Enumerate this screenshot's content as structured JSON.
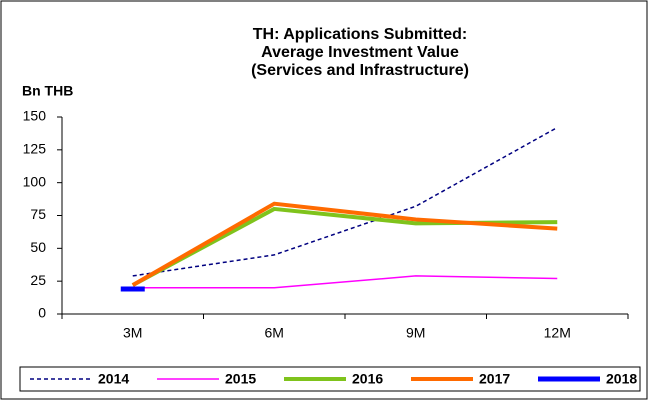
{
  "chart_data": {
    "type": "line",
    "title": [
      "TH: Applications Submitted:",
      "Average Investment Value",
      "(Services and Infrastructure)"
    ],
    "y_label": "Bn THB",
    "categories": [
      "3M",
      "6M",
      "9M",
      "12M"
    ],
    "series": [
      {
        "name": "2014",
        "color": "#000080",
        "width": 1.5,
        "dashed": true,
        "values": [
          29,
          45,
          82,
          142
        ]
      },
      {
        "name": "2015",
        "color": "#ff00ff",
        "width": 1.5,
        "dashed": false,
        "values": [
          20,
          20,
          29,
          27
        ]
      },
      {
        "name": "2016",
        "color": "#7fc31c",
        "width": 4,
        "dashed": false,
        "values": [
          22,
          80,
          69,
          70
        ]
      },
      {
        "name": "2017",
        "color": "#ff6a00",
        "width": 4,
        "dashed": false,
        "values": [
          22,
          84,
          72,
          65
        ]
      },
      {
        "name": "2018",
        "color": "#0000ff",
        "width": 5,
        "dashed": false,
        "values": [
          19,
          null,
          null,
          null
        ]
      }
    ],
    "ylim": [
      0,
      150
    ],
    "yticks": [
      0,
      25,
      50,
      75,
      100,
      125,
      150
    ],
    "grid": false
  }
}
